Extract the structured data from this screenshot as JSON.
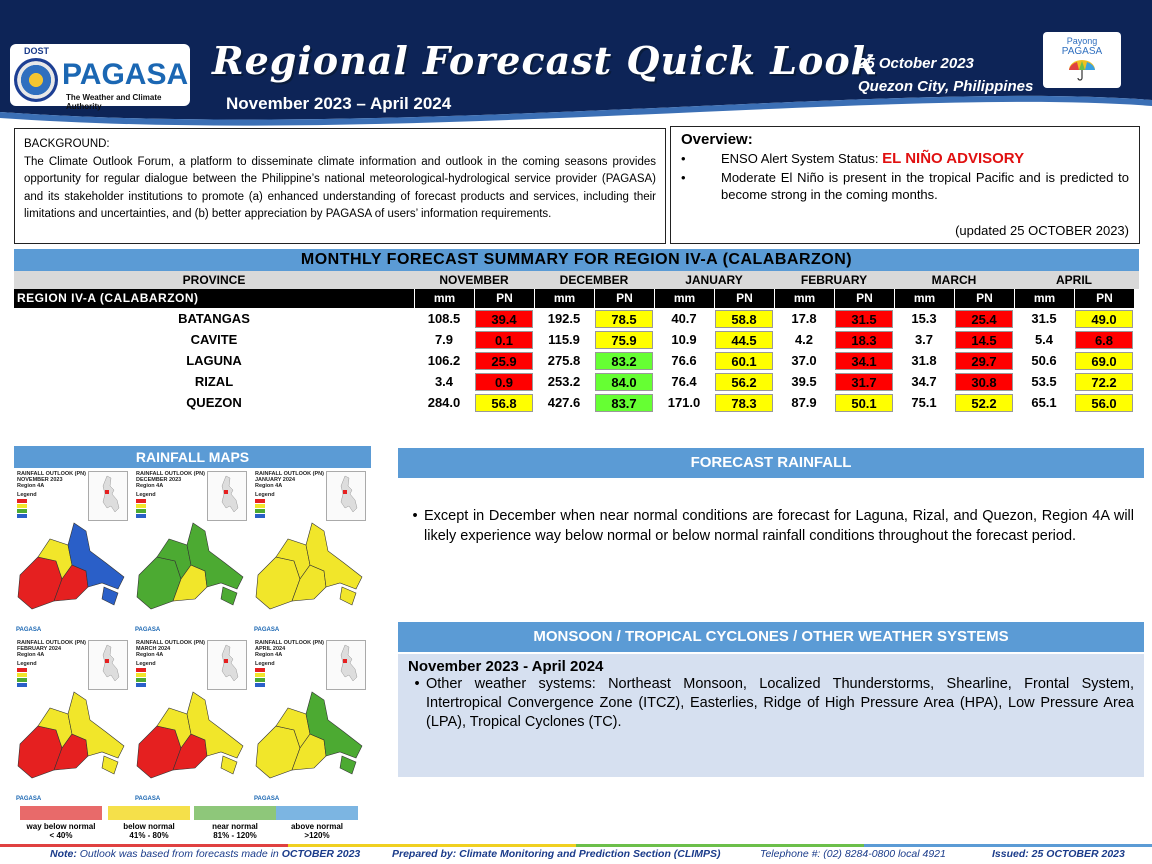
{
  "header": {
    "dost": "DOST",
    "agency": "PAGASA",
    "tagline": "The Weather and Climate Authority",
    "title": "Regional Forecast Quick Look",
    "period": "November 2023 – April 2024",
    "date": "25 October 2023",
    "place": "Quezon City, Philippines",
    "payong_l1": "Payong",
    "payong_l2": "PAGASA",
    "colors": {
      "navy": "#0d2457",
      "accent": "#5b9bd5"
    }
  },
  "background": {
    "title": "BACKGROUND:",
    "text": "The Climate Outlook Forum, a platform to disseminate climate information and outlook in the coming seasons provides opportunity for regular dialogue between the Philippine’s national meteorological-hydrological service provider (PAGASA) and its stakeholder institutions to promote (a) enhanced understanding of forecast products and services, including their limitations and uncertainties, and (b) better appreciation by PAGASA of users’ information requirements."
  },
  "overview": {
    "title": "Overview:",
    "enso_label": "ENSO Alert System Status: ",
    "enso_status": "EL NIÑO ADVISORY",
    "item2": "Moderate El Niño is present in the tropical Pacific and is predicted to become strong in the coming months.",
    "updated": "(updated 25 OCTOBER 2023)"
  },
  "table": {
    "title": "MONTHLY FORECAST SUMMARY FOR REGION IV-A  (CALABARZON)",
    "province_header": "PROVINCE",
    "region_label": "REGION IV-A  (CALABARZON)",
    "months": [
      "NOVEMBER",
      "DECEMBER",
      "JANUARY",
      "FEBRUARY",
      "MARCH",
      "APRIL"
    ],
    "sub_mm": "mm",
    "sub_pn": "PN",
    "rows": [
      {
        "province": "BATANGAS",
        "mm": [
          "108.5",
          "192.5",
          "40.7",
          "17.8",
          "15.3",
          "31.5"
        ],
        "pn": [
          "39.4",
          "78.5",
          "58.8",
          "31.5",
          "25.4",
          "49.0"
        ],
        "cls": [
          "red",
          "yellow",
          "yellow",
          "red",
          "red",
          "yellow"
        ]
      },
      {
        "province": "CAVITE",
        "mm": [
          "7.9",
          "115.9",
          "10.9",
          "4.2",
          "3.7",
          "5.4"
        ],
        "pn": [
          "0.1",
          "75.9",
          "44.5",
          "18.3",
          "14.5",
          "6.8"
        ],
        "cls": [
          "red",
          "yellow",
          "yellow",
          "red",
          "red",
          "red"
        ]
      },
      {
        "province": "LAGUNA",
        "mm": [
          "106.2",
          "275.8",
          "76.6",
          "37.0",
          "31.8",
          "50.6"
        ],
        "pn": [
          "25.9",
          "83.2",
          "60.1",
          "34.1",
          "29.7",
          "69.0"
        ],
        "cls": [
          "red",
          "green",
          "yellow",
          "red",
          "red",
          "yellow"
        ]
      },
      {
        "province": "RIZAL",
        "mm": [
          "3.4",
          "253.2",
          "76.4",
          "39.5",
          "34.7",
          "53.5"
        ],
        "pn": [
          "0.9",
          "84.0",
          "56.2",
          "31.7",
          "30.8",
          "72.2"
        ],
        "cls": [
          "red",
          "green",
          "yellow",
          "red",
          "red",
          "yellow"
        ]
      },
      {
        "province": "QUEZON",
        "mm": [
          "284.0",
          "427.6",
          "171.0",
          "87.9",
          "75.1",
          "65.1"
        ],
        "pn": [
          "56.8",
          "83.7",
          "78.3",
          "50.1",
          "52.2",
          "56.0"
        ],
        "cls": [
          "yellow",
          "green",
          "yellow",
          "yellow",
          "yellow",
          "yellow"
        ]
      }
    ],
    "colors": {
      "red": "#ff0000",
      "yellow": "#ffff00",
      "green": "#66ff33"
    }
  },
  "maps": {
    "header": "RAINFALL MAPS",
    "panel_prefix": "RAINFALL OUTLOOK (PN)",
    "panel_region": "Region 4A",
    "panel_legend": "Legend",
    "panels": [
      "NOVEMBER 2023",
      "DECEMBER 2023",
      "JANUARY 2024",
      "FEBRUARY 2024",
      "MARCH 2024",
      "APRIL 2024"
    ],
    "footer_label": "PAGASA"
  },
  "legend": [
    {
      "name": "way below normal",
      "range": "< 40%",
      "color": "#e86a6a"
    },
    {
      "name": "below normal",
      "range": "41%  -  80%",
      "color": "#f5e04a"
    },
    {
      "name": "near normal",
      "range": "81% - 120%",
      "color": "#8ec77a"
    },
    {
      "name": "above normal",
      "range": ">120%",
      "color": "#7cb5e2"
    }
  ],
  "forecast": {
    "header": "FORECAST RAINFALL",
    "text": "Except in December when near normal conditions are forecast for Laguna, Rizal, and Quezon, Region 4A will likely experience way below normal or below normal rainfall conditions throughout the forecast period."
  },
  "monsoon": {
    "header": "MONSOON  / TROPICAL CYCLONES / OTHER WEATHER SYSTEMS",
    "period": "November 2023 - April 2024",
    "text": "Other weather systems: Northeast Monsoon, Localized Thunderstorms, Shearline, Frontal System, Intertropical Convergence Zone (ITCZ), Easterlies, Ridge of High Pressure Area (HPA), Low Pressure Area (LPA), Tropical Cyclones (TC)."
  },
  "footer": {
    "note_label": "Note:",
    "note_text": " Outlook was based from forecasts made in ",
    "note_month": "OCTOBER 2023",
    "prepared": "Prepared by: Climate Monitoring and Prediction Section (CLIMPS)",
    "telephone": "Telephone #: (02) 8284-0800 local 4921",
    "issued": "Issued: 25 OCTOBER 2023"
  }
}
